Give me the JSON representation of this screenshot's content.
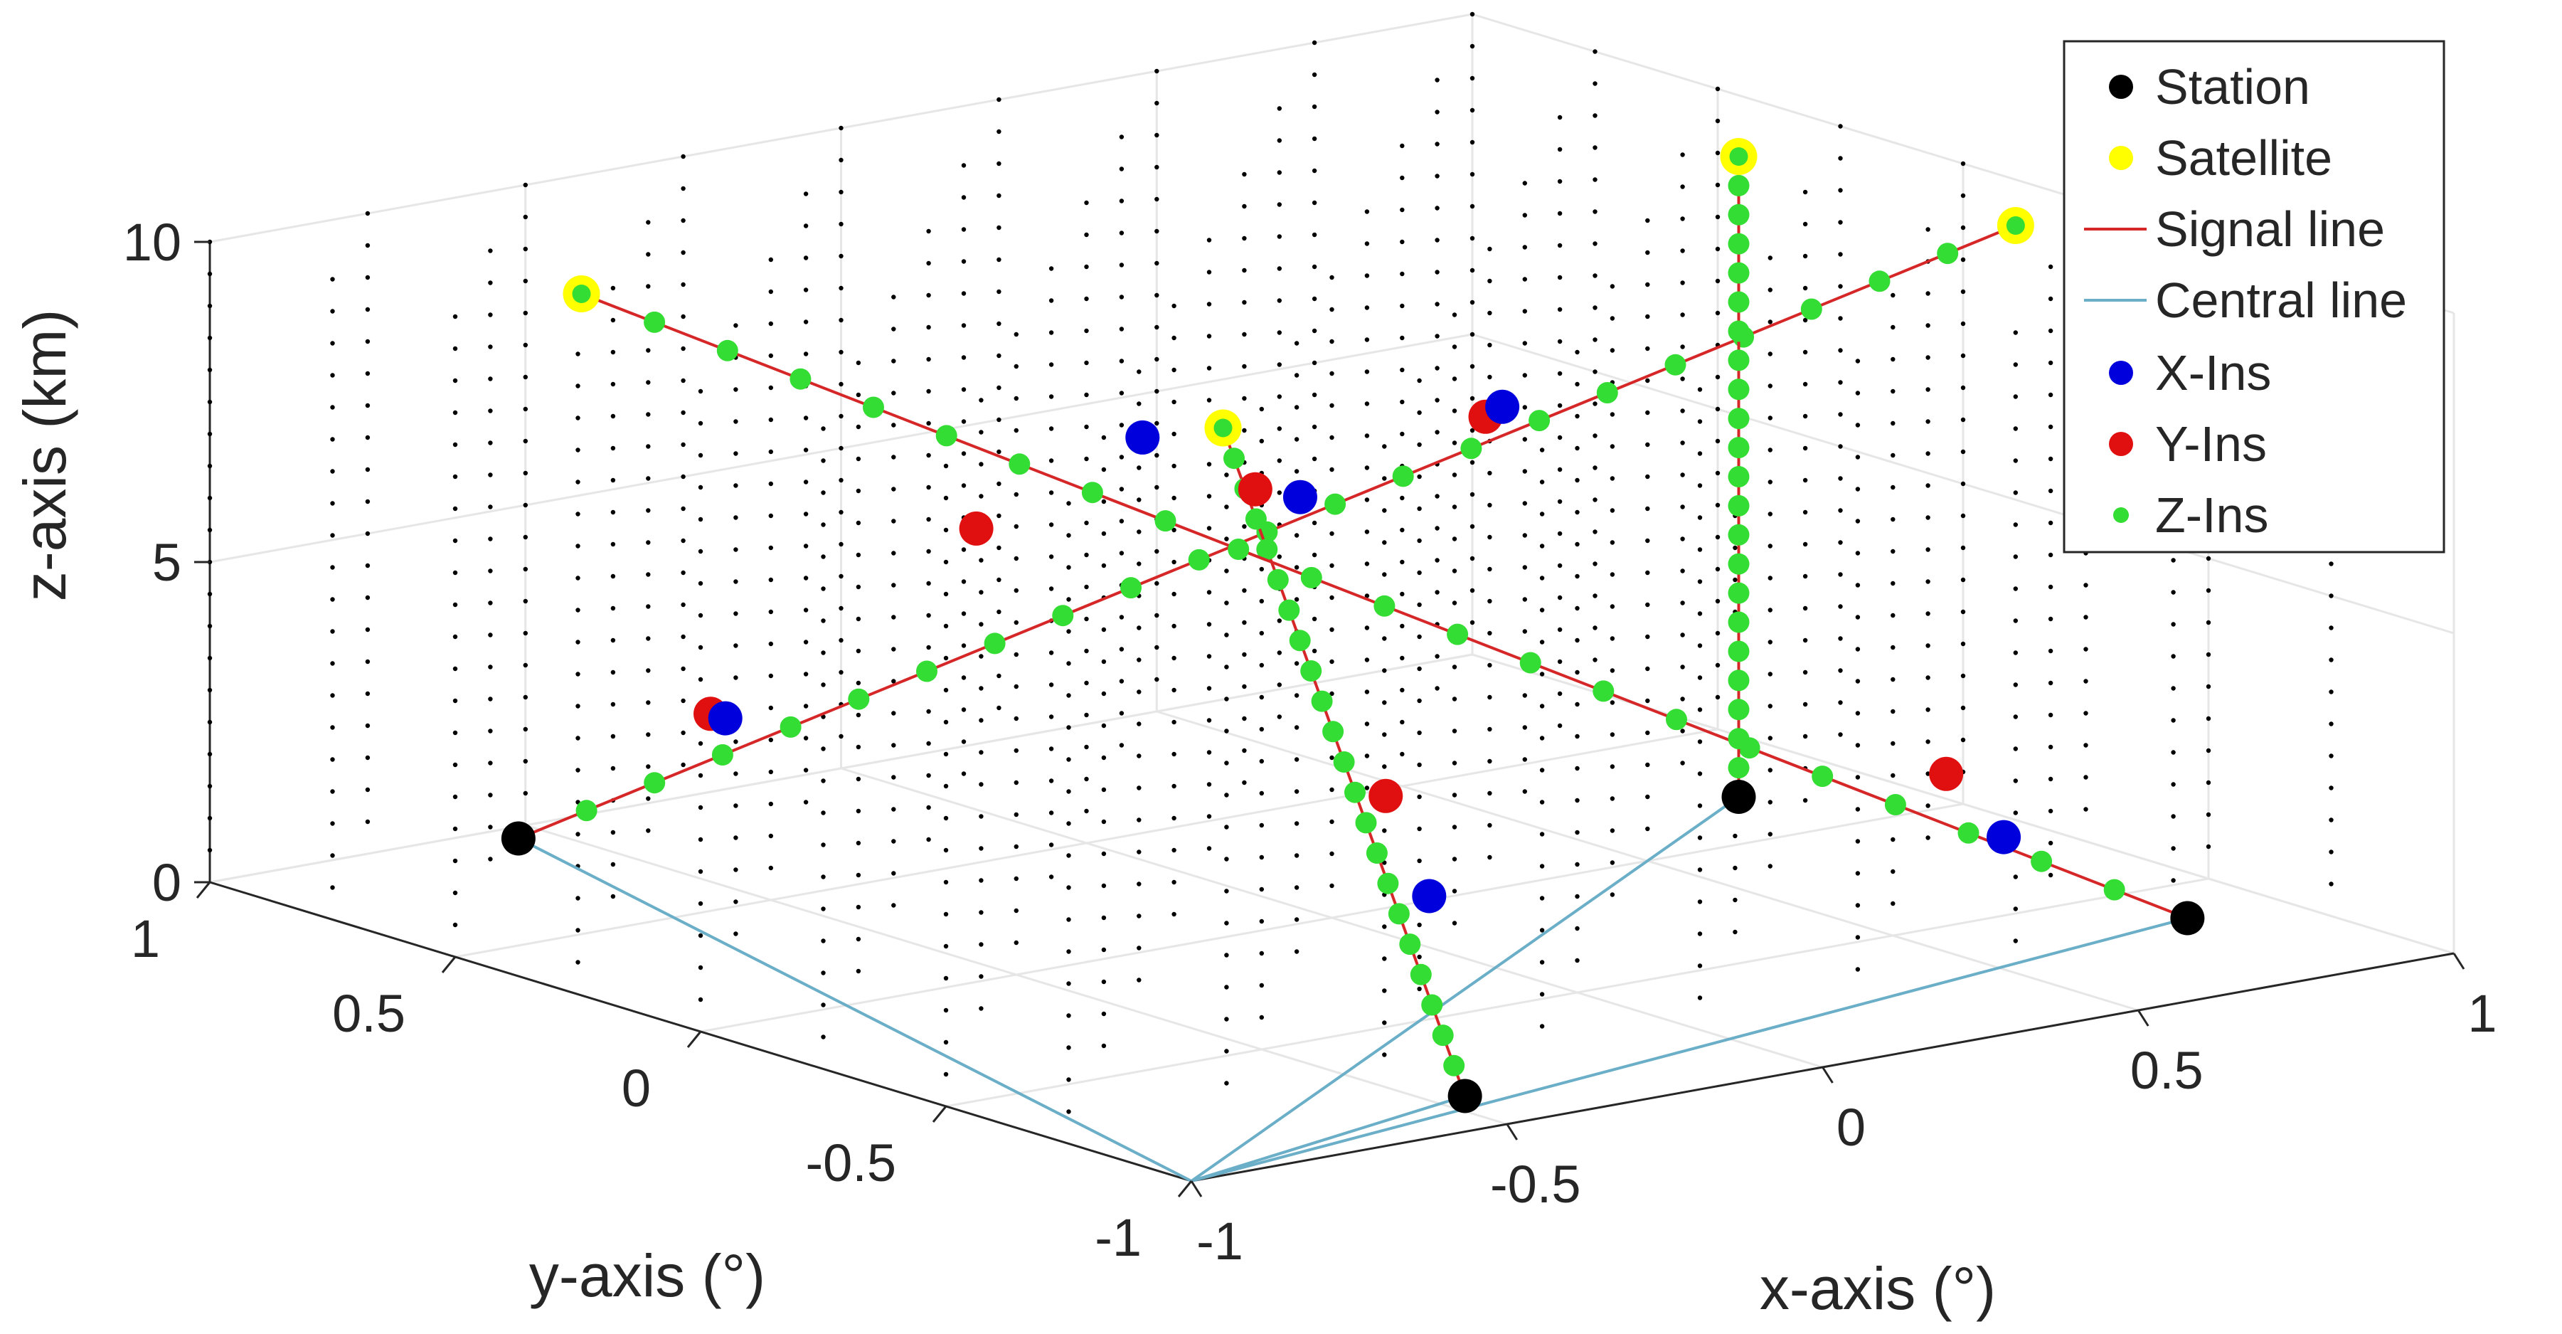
{
  "chart_data": {
    "type": "scatter",
    "title": "",
    "xlabel": "x-axis (°)",
    "ylabel": "y-axis (°)",
    "zlabel": "z-axis (km)",
    "xlim": [
      -1,
      1
    ],
    "ylim": [
      -1,
      1
    ],
    "zlim": [
      0,
      10
    ],
    "x_ticks": [
      "-1",
      "-0.5",
      "0",
      "0.5",
      "1"
    ],
    "y_ticks": [
      "-1",
      "-0.5",
      "0",
      "0.5",
      "1"
    ],
    "z_ticks": [
      "0",
      "5",
      "10"
    ],
    "grid": true,
    "legend_position": "top-right",
    "colors": {
      "station": "#000000",
      "satellite": "#ffff00",
      "signal_line": "#d62728",
      "central_line": "#6aaec8",
      "x_ins": "#0000dd",
      "y_ins": "#e01010",
      "z_ins": "#33dd33",
      "grid_dots": "#000000"
    },
    "legend": [
      "Station",
      "Satellite",
      "Signal line",
      "Central line",
      "X-Ins",
      "Y-Ins",
      "Z-Ins"
    ],
    "center": [
      -1,
      -1,
      0
    ],
    "signal_paths": [
      {
        "station": [
          -0.55,
          0.95,
          0
        ],
        "satellite": [
          0.85,
          -0.3,
          10
        ]
      },
      {
        "station": [
          -0.45,
          -0.85,
          0
        ],
        "satellite": [
          -0.6,
          -0.55,
          10
        ]
      },
      {
        "station": [
          0.85,
          -0.65,
          0
        ],
        "satellite": [
          -0.8,
          0.5,
          10
        ]
      },
      {
        "station": [
          0.8,
          0.2,
          0
        ],
        "satellite": [
          0.8,
          0.2,
          10
        ]
      }
    ],
    "x_ins": [
      [
        -0.37,
        0.76,
        2.0
      ],
      [
        0.27,
        0.0,
        7.5
      ],
      [
        -0.46,
        -0.79,
        3.0
      ],
      [
        -0.54,
        -0.63,
        9.0
      ],
      [
        0.66,
        -0.52,
        1.3
      ],
      [
        -0.23,
        0.09,
        7.7
      ]
    ],
    "y_ins": [
      [
        -0.37,
        0.79,
        2.0
      ],
      [
        0.43,
        0.24,
        6.5
      ],
      [
        -0.49,
        -0.74,
        4.5
      ],
      [
        -0.58,
        -0.59,
        9.1
      ],
      [
        0.6,
        -0.48,
        2.3
      ],
      [
        -0.4,
        0.21,
        6.3
      ]
    ],
    "z_ins_per_path": 21,
    "grid_dot_stride": 0.25
  }
}
